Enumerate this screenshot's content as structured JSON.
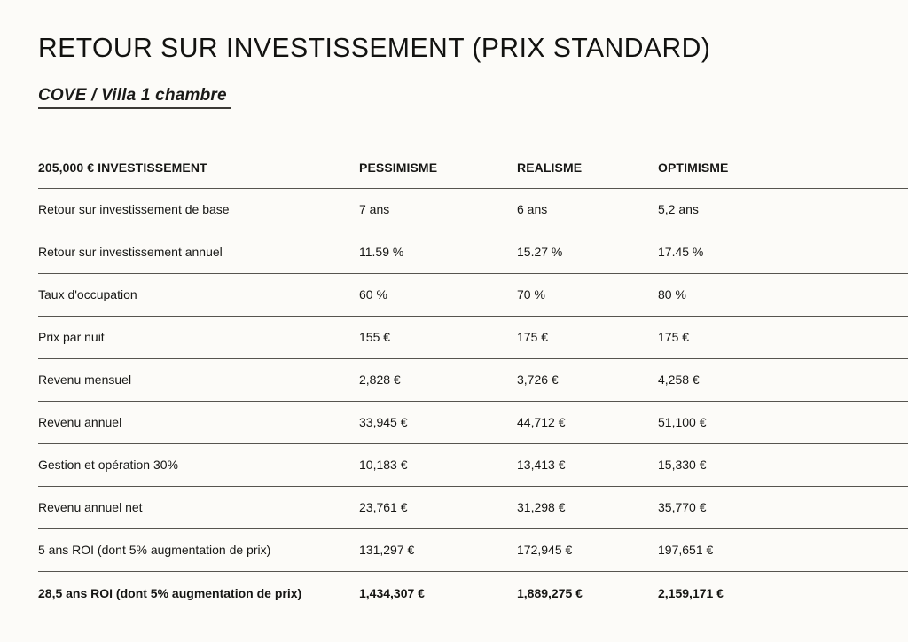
{
  "page": {
    "title": "RETOUR SUR INVESTISSEMENT (PRIX STANDARD)",
    "subtitle": "COVE / Villa 1 chambre"
  },
  "colors": {
    "background": "#fcfbf8",
    "text": "#161614",
    "rule_line": "#56544f"
  },
  "table": {
    "header": {
      "investment": "205,000 € INVESTISSEMENT",
      "pessimisme": "PESSIMISME",
      "realisme": "REALISME",
      "optimisme": "OPTIMISME"
    },
    "rows": [
      {
        "label": "Retour sur investissement de base",
        "pessimisme": "7 ans",
        "realisme": "6 ans",
        "optimisme": "5,2 ans"
      },
      {
        "label": "Retour sur investissement annuel",
        "pessimisme": "11.59 %",
        "realisme": "15.27 %",
        "optimisme": "17.45 %"
      },
      {
        "label": "Taux d'occupation",
        "pessimisme": "60 %",
        "realisme": "70 %",
        "optimisme": "80 %"
      },
      {
        "label": "Prix par nuit",
        "pessimisme": "155 €",
        "realisme": "175 €",
        "optimisme": "175 €"
      },
      {
        "label": "Revenu mensuel",
        "pessimisme": "2,828 €",
        "realisme": "3,726 €",
        "optimisme": "4,258 €"
      },
      {
        "label": "Revenu annuel",
        "pessimisme": "33,945 €",
        "realisme": "44,712 €",
        "optimisme": "51,100 €"
      },
      {
        "label": "Gestion et opération 30%",
        "pessimisme": "10,183 €",
        "realisme": "13,413 €",
        "optimisme": "15,330 €"
      },
      {
        "label": "Revenu annuel net",
        "pessimisme": "23,761 €",
        "realisme": "31,298 €",
        "optimisme": "35,770 €"
      },
      {
        "label": "5 ans ROI (dont 5% augmentation de prix)",
        "pessimisme": "131,297 €",
        "realisme": "172,945 €",
        "optimisme": "197,651 €"
      },
      {
        "label": "28,5 ans ROI (dont 5% augmentation de prix)",
        "pessimisme": "1,434,307 €",
        "realisme": "1,889,275 €",
        "optimisme": "2,159,171 €"
      }
    ]
  }
}
